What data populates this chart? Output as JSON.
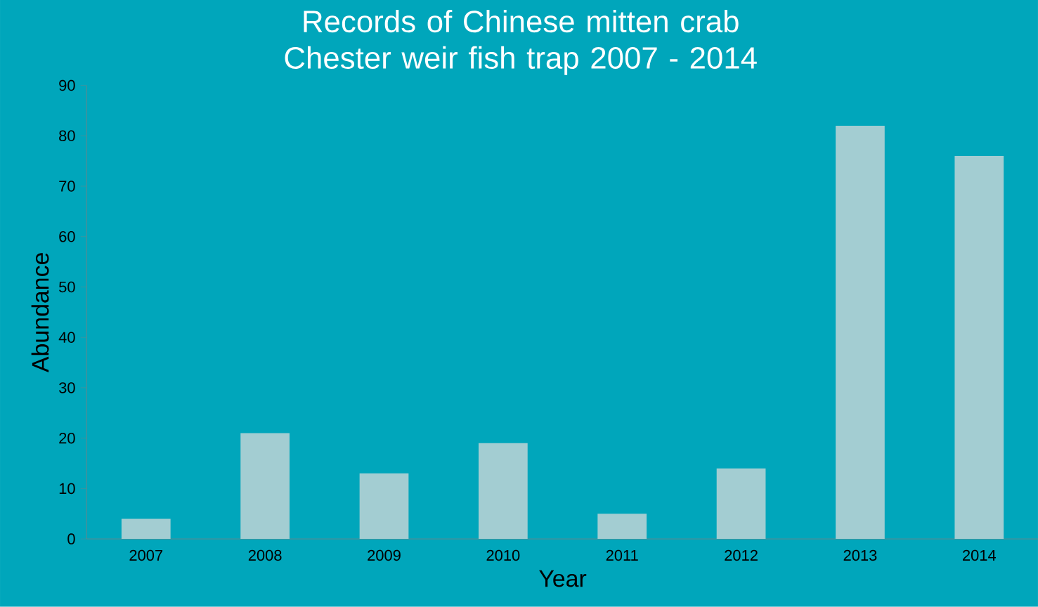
{
  "chart_data": {
    "type": "bar",
    "title": "Records of Chinese mitten crab Chester weir fish trap 2007 - 2014",
    "xlabel": "Year",
    "ylabel": "Abundance",
    "categories": [
      "2007",
      "2008",
      "2009",
      "2010",
      "2011",
      "2012",
      "2013",
      "2014"
    ],
    "values": [
      4,
      21,
      13,
      19,
      5,
      14,
      82,
      76
    ],
    "color": "#a3cdd2",
    "ylim": [
      0,
      90
    ],
    "yticks": [
      0,
      10,
      20,
      30,
      40,
      50,
      60,
      70,
      80,
      90
    ]
  }
}
